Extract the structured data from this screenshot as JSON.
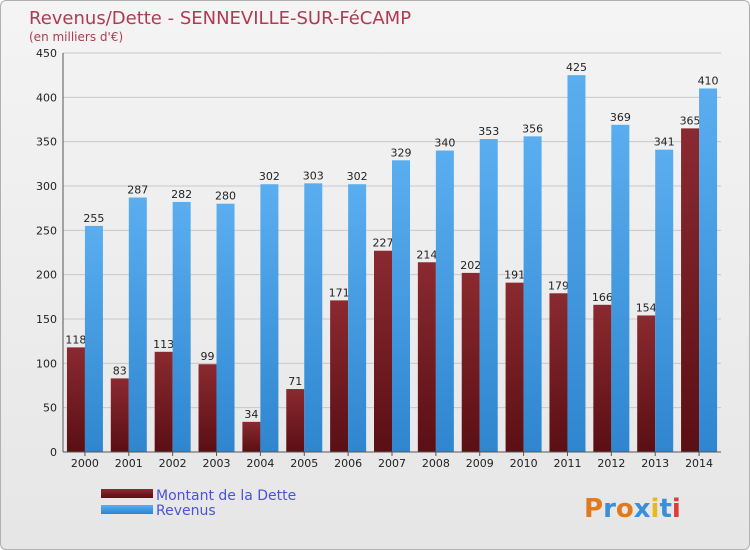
{
  "chart_data": {
    "type": "bar",
    "title": "Revenus/Dette - SENNEVILLE-SUR-FéCAMP",
    "subtitle": "(en milliers d'€)",
    "categories": [
      "2000",
      "2001",
      "2002",
      "2003",
      "2004",
      "2005",
      "2006",
      "2007",
      "2008",
      "2009",
      "2010",
      "2011",
      "2012",
      "2013",
      "2014"
    ],
    "series": [
      {
        "name": "Montant de la Dette",
        "color": "#7a1f24",
        "values": [
          118,
          83,
          113,
          99,
          34,
          71,
          171,
          227,
          214,
          202,
          191,
          179,
          166,
          154,
          365
        ]
      },
      {
        "name": "Revenus",
        "color": "#4ea3e6",
        "values": [
          255,
          287,
          282,
          280,
          302,
          303,
          302,
          329,
          340,
          353,
          356,
          425,
          369,
          341,
          410
        ]
      }
    ],
    "ylim": [
      0,
      450
    ],
    "yticks": [
      0,
      50,
      100,
      150,
      200,
      250,
      300,
      350,
      400,
      450
    ],
    "grid": true,
    "legend_position": "bottom-left"
  },
  "logo": {
    "letters": [
      "P",
      "r",
      "o",
      "x",
      "i",
      "t",
      "i"
    ],
    "colors": [
      "#e07a1f",
      "#3a8fd6",
      "#e07a1f",
      "#3a8fd6",
      "#e8b91a",
      "#3a8fd6",
      "#e03a3a"
    ]
  }
}
